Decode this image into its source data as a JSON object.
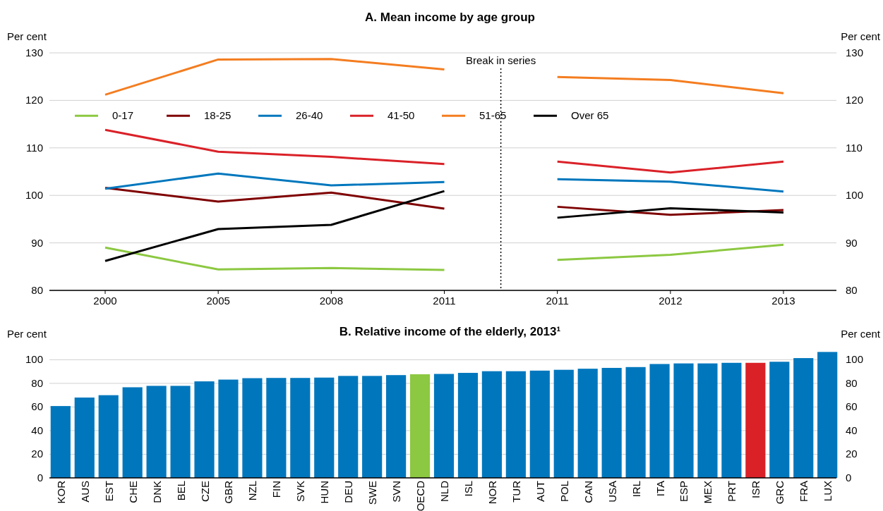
{
  "chart_data": [
    {
      "type": "line",
      "title": "A. Mean income by age group",
      "ylabel": "Per cent",
      "y2label": "Per cent",
      "categories": [
        "2000",
        "2005",
        "2008",
        "2011",
        "2011",
        "2012",
        "2013"
      ],
      "series": [
        {
          "name": "0-17",
          "color": "#8cc841",
          "values": [
            89.0,
            84.4,
            84.7,
            84.3,
            86.4,
            87.5,
            89.6
          ]
        },
        {
          "name": "18-25",
          "color": "#7f0000",
          "values": [
            101.6,
            98.7,
            100.6,
            97.2,
            97.6,
            95.9,
            96.9
          ]
        },
        {
          "name": "26-40",
          "color": "#0077bd",
          "values": [
            101.4,
            104.6,
            102.1,
            102.8,
            103.4,
            102.9,
            100.8
          ]
        },
        {
          "name": "41-50",
          "color": "#da2128",
          "values": [
            113.8,
            109.2,
            108.1,
            106.6,
            107.1,
            104.8,
            107.1
          ]
        },
        {
          "name": "51-65",
          "color": "#f47d20",
          "values": [
            121.2,
            128.6,
            128.7,
            126.5,
            124.9,
            124.3,
            121.5
          ]
        },
        {
          "name": "Over 65",
          "color": "#000000",
          "values": [
            86.2,
            92.9,
            93.8,
            100.9,
            95.3,
            97.3,
            96.4
          ]
        }
      ],
      "ylim": [
        80,
        130
      ],
      "yticks": [
        80,
        90,
        100,
        110,
        120,
        130
      ],
      "y2lim": [
        80,
        130
      ],
      "y2ticks": [
        80,
        90,
        100,
        110,
        120,
        130
      ],
      "grid": "y",
      "legend": "top",
      "line_style": "solid",
      "marker": "none",
      "annotations": [
        "Break in series"
      ]
    },
    {
      "type": "bar",
      "title": "B. Relative income of the elderly, 2013¹",
      "ylabel": "Per cent",
      "y2label": "Per cent",
      "categories": [
        "KOR",
        "AUS",
        "EST",
        "CHE",
        "DNK",
        "BEL",
        "CZE",
        "GBR",
        "NZL",
        "FIN",
        "SVK",
        "HUN",
        "DEU",
        "SWE",
        "SVN",
        "OECD",
        "NLD",
        "ISL",
        "NOR",
        "TUR",
        "AUT",
        "POL",
        "CAN",
        "USA",
        "IRL",
        "ITA",
        "ESP",
        "MEX",
        "PRT",
        "ISR",
        "GRC",
        "FRA",
        "LUX"
      ],
      "values": [
        60.8,
        68.0,
        70.0,
        76.7,
        77.9,
        77.9,
        81.7,
        83.2,
        84.4,
        84.6,
        84.6,
        84.9,
        86.3,
        86.3,
        87.0,
        87.7,
        88.0,
        88.9,
        90.3,
        90.3,
        90.8,
        91.5,
        92.4,
        93.1,
        93.8,
        96.4,
        96.9,
        96.9,
        97.4,
        97.4,
        98.3,
        101.4,
        106.6
      ],
      "colors": [
        "#0077bd",
        "#0077bd",
        "#0077bd",
        "#0077bd",
        "#0077bd",
        "#0077bd",
        "#0077bd",
        "#0077bd",
        "#0077bd",
        "#0077bd",
        "#0077bd",
        "#0077bd",
        "#0077bd",
        "#0077bd",
        "#0077bd",
        "#8cc841",
        "#0077bd",
        "#0077bd",
        "#0077bd",
        "#0077bd",
        "#0077bd",
        "#0077bd",
        "#0077bd",
        "#0077bd",
        "#0077bd",
        "#0077bd",
        "#0077bd",
        "#0077bd",
        "#0077bd",
        "#da2128",
        "#0077bd",
        "#0077bd",
        "#0077bd"
      ],
      "ylim": [
        0,
        108
      ],
      "yticks": [
        0,
        20,
        40,
        60,
        80,
        100
      ],
      "y2lim": [
        0,
        108
      ],
      "y2ticks": [
        0,
        20,
        40,
        60,
        80,
        100
      ],
      "grid": "y",
      "legend": false
    }
  ]
}
